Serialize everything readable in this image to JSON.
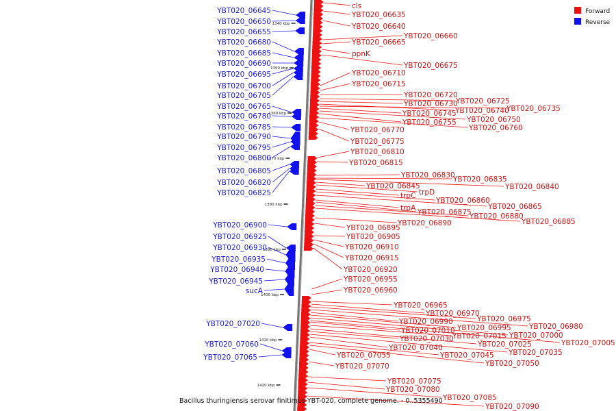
{
  "caption": "Bacillus thuringiensis serovar finitimus YBT-020, complete genome. - 0..5355490",
  "legend": [
    {
      "label": "Forward",
      "color": "#ee1111"
    },
    {
      "label": "Reverse",
      "color": "#1111ee"
    }
  ],
  "colors": {
    "forward": "#ee1111",
    "reverse": "#1111ee",
    "backbone": "#888888"
  },
  "ticks": [
    "1340 kbp",
    "1350 kbp",
    "1360 kbp",
    "1370 kbp",
    "1380 kbp",
    "1390 kbp",
    "1400 kbp",
    "1410 kbp",
    "1420 kbp"
  ],
  "reverse_genes": [
    "YBT020_06645",
    "YBT020_06650",
    "YBT020_06655",
    "YBT020_06680",
    "YBT020_06685",
    "YBT020_06690",
    "YBT020_06695",
    "YBT020_06700",
    "YBT020_06705",
    "YBT020_06765",
    "YBT020_06780",
    "YBT020_06785",
    "YBT020_06790",
    "YBT020_06795",
    "YBT020_06800",
    "YBT020_06805",
    "YBT020_06820",
    "YBT020_06825",
    "YBT020_06900",
    "YBT020_06925",
    "YBT020_06930",
    "YBT020_06935",
    "YBT020_06940",
    "YBT020_06945",
    "sucA",
    "YBT020_07020",
    "YBT020_07060",
    "YBT020_07065"
  ],
  "forward_genes": [
    "cls",
    "YBT020_06635",
    "YBT020_06640",
    "YBT020_06660",
    "YBT020_06665",
    "ppnK",
    "YBT020_06675",
    "YBT020_06710",
    "YBT020_06715",
    "YBT020_06720",
    "YBT020_06725",
    "YBT020_06730",
    "YBT020_06740",
    "YBT020_06735",
    "YBT020_06745",
    "YBT020_06750",
    "YBT020_06755",
    "YBT020_06760",
    "YBT020_06770",
    "YBT020_06775",
    "YBT020_06810",
    "YBT020_06815",
    "YBT020_06830",
    "YBT020_06835",
    "YBT020_06840",
    "YBT020_06845",
    "trpD",
    "trpC",
    "YBT020_06860",
    "YBT020_06865",
    "trpA",
    "YBT020_06875",
    "YBT020_06880",
    "YBT020_06885",
    "YBT020_06890",
    "YBT020_06895",
    "YBT020_06905",
    "YBT020_06910",
    "YBT020_06915",
    "YBT020_06920",
    "YBT020_06955",
    "YBT020_06960",
    "YBT020_06965",
    "YBT020_06970",
    "YBT020_06975",
    "YBT020_06980",
    "YBT020_06990",
    "YBT020_06995",
    "YBT020_07000",
    "YBT020_07005",
    "YBT020_07010",
    "YBT020_07015",
    "YBT020_07025",
    "YBT020_07030",
    "YBT020_07035",
    "YBT020_07040",
    "YBT020_07045",
    "YBT020_07050",
    "YBT020_07055",
    "YBT020_07070",
    "YBT020_07075",
    "YBT020_07080",
    "YBT020_07085",
    "YBT020_07090"
  ]
}
